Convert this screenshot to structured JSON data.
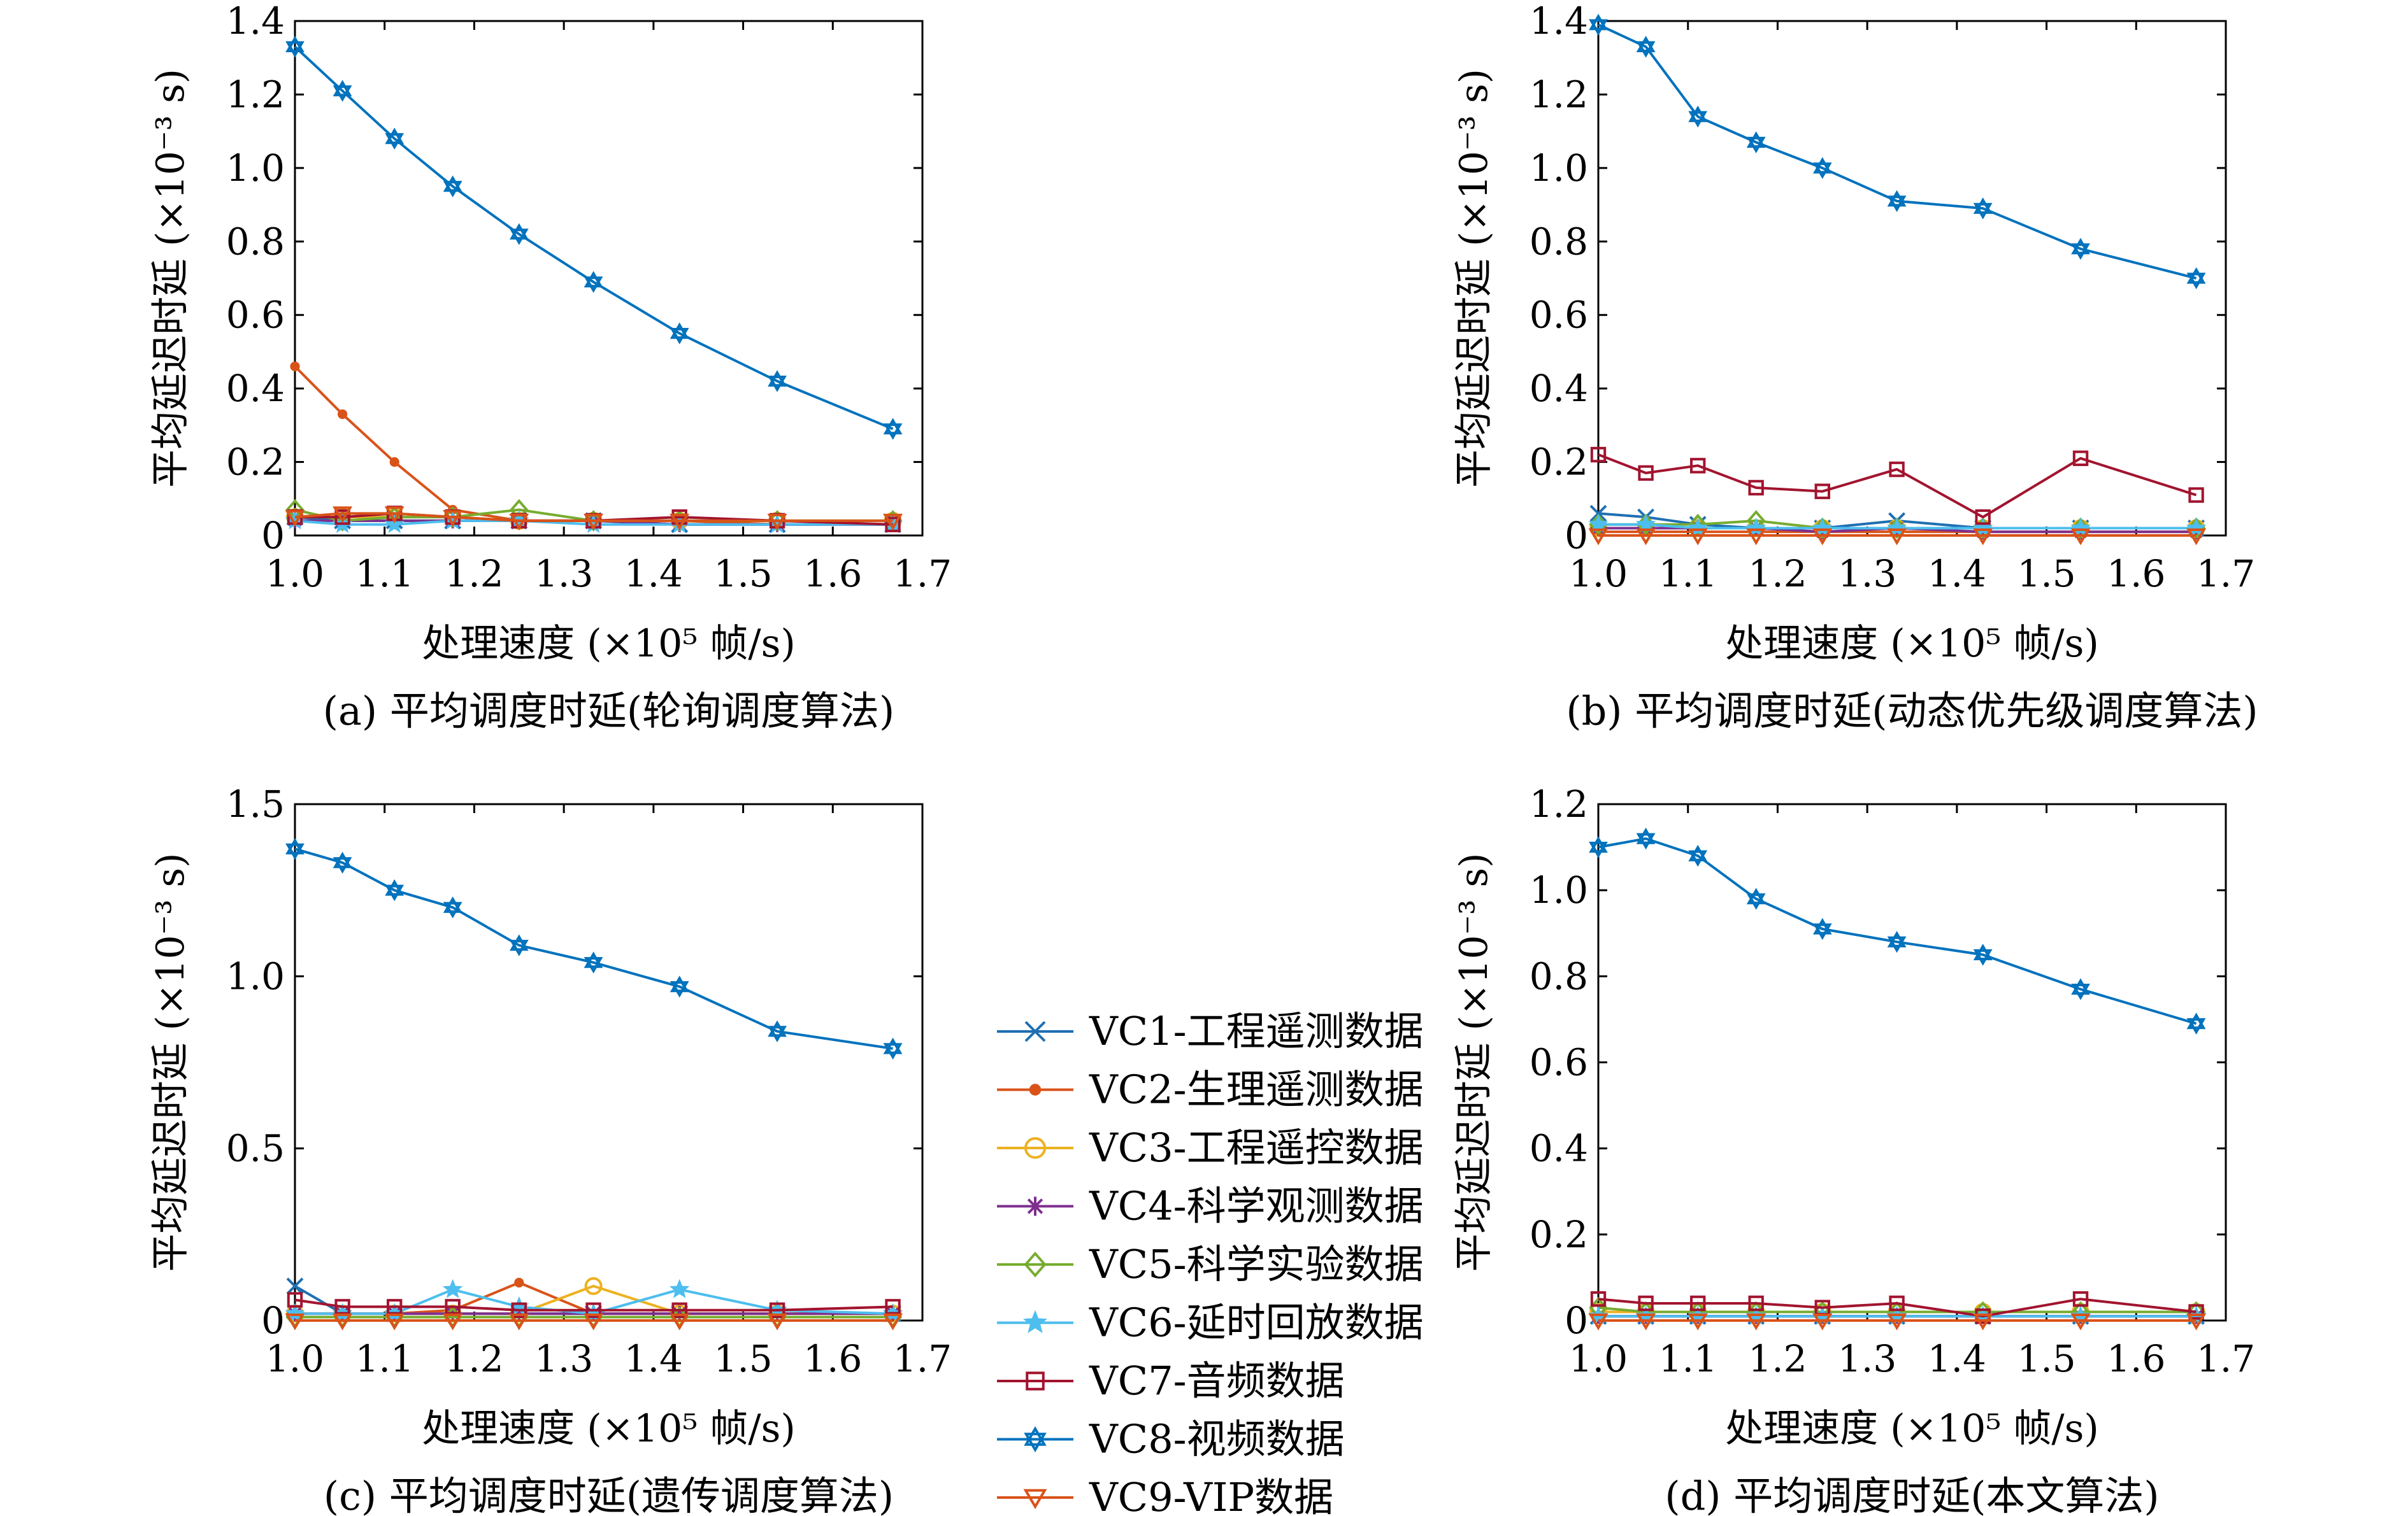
{
  "figure": {
    "legend": [
      {
        "key": "vc1",
        "label": "VC1-工程遥测数据",
        "color": "#1f6fb2",
        "marker": "x"
      },
      {
        "key": "vc2",
        "label": "VC2-生理遥测数据",
        "color": "#d95319",
        "marker": "dot"
      },
      {
        "key": "vc3",
        "label": "VC3-工程遥控数据",
        "color": "#edb120",
        "marker": "circle"
      },
      {
        "key": "vc4",
        "label": "VC4-科学观测数据",
        "color": "#7e2f8e",
        "marker": "asterisk"
      },
      {
        "key": "vc5",
        "label": "VC5-科学实验数据",
        "color": "#77ac30",
        "marker": "diamond"
      },
      {
        "key": "vc6",
        "label": "VC6-延时回放数据",
        "color": "#4dbeee",
        "marker": "star"
      },
      {
        "key": "vc7",
        "label": "VC7-音频数据",
        "color": "#a2142f",
        "marker": "square"
      },
      {
        "key": "vc8",
        "label": "VC8-视频数据",
        "color": "#0072bd",
        "marker": "hexagram"
      },
      {
        "key": "vc9",
        "label": "VC9-VIP数据",
        "color": "#d95319",
        "marker": "triangle-down"
      }
    ]
  },
  "chart_data": [
    {
      "type": "line",
      "caption": "(a) 平均调度时延(轮询调度算法)",
      "xlabel": "处理速度 (×10⁵ 帧/s)",
      "ylabel": "平均延迟时延 (×10⁻³ s)",
      "xlim": [
        1.0,
        1.7
      ],
      "ylim": [
        0,
        1.4
      ],
      "xticks": [
        "1.0",
        "1.1",
        "1.2",
        "1.3",
        "1.4",
        "1.5",
        "1.6",
        "1.7"
      ],
      "yticks": [
        "0",
        "0.2",
        "0.4",
        "0.6",
        "0.8",
        "1.0",
        "1.2",
        "1.4"
      ],
      "x": [
        1.0,
        1.053,
        1.111,
        1.176,
        1.25,
        1.333,
        1.429,
        1.538,
        1.667
      ],
      "series": [
        {
          "name": "VC1-工程遥测数据",
          "values": [
            0.05,
            0.04,
            0.04,
            0.04,
            0.04,
            0.04,
            0.03,
            0.03,
            0.03
          ]
        },
        {
          "name": "VC2-生理遥测数据",
          "values": [
            0.46,
            0.33,
            0.2,
            0.07,
            0.04,
            0.04,
            0.04,
            0.03,
            0.03
          ]
        },
        {
          "name": "VC3-工程遥控数据",
          "values": [
            0.05,
            0.05,
            0.05,
            0.05,
            0.04,
            0.04,
            0.04,
            0.04,
            0.04
          ]
        },
        {
          "name": "VC4-科学观测数据",
          "values": [
            0.04,
            0.04,
            0.04,
            0.04,
            0.04,
            0.04,
            0.03,
            0.03,
            0.03
          ]
        },
        {
          "name": "VC5-科学实验数据",
          "values": [
            0.07,
            0.04,
            0.05,
            0.05,
            0.07,
            0.04,
            0.04,
            0.04,
            0.04
          ]
        },
        {
          "name": "VC6-延时回放数据",
          "values": [
            0.04,
            0.03,
            0.03,
            0.04,
            0.04,
            0.03,
            0.03,
            0.03,
            0.03
          ]
        },
        {
          "name": "VC7-音频数据",
          "values": [
            0.05,
            0.05,
            0.06,
            0.05,
            0.04,
            0.04,
            0.05,
            0.04,
            0.03
          ]
        },
        {
          "name": "VC8-视频数据",
          "values": [
            1.33,
            1.21,
            1.08,
            0.95,
            0.82,
            0.69,
            0.55,
            0.42,
            0.29
          ]
        },
        {
          "name": "VC9-VIP数据",
          "values": [
            0.05,
            0.06,
            0.06,
            0.05,
            0.04,
            0.04,
            0.04,
            0.04,
            0.04
          ]
        }
      ]
    },
    {
      "type": "line",
      "caption": "(b) 平均调度时延(动态优先级调度算法)",
      "xlabel": "处理速度 (×10⁵ 帧/s)",
      "ylabel": "平均延迟时延 (×10⁻³ s)",
      "xlim": [
        1.0,
        1.7
      ],
      "ylim": [
        0,
        1.4
      ],
      "xticks": [
        "1.0",
        "1.1",
        "1.2",
        "1.3",
        "1.4",
        "1.5",
        "1.6",
        "1.7"
      ],
      "yticks": [
        "0",
        "0.2",
        "0.4",
        "0.6",
        "0.8",
        "1.0",
        "1.2",
        "1.4"
      ],
      "x": [
        1.0,
        1.053,
        1.111,
        1.176,
        1.25,
        1.333,
        1.429,
        1.538,
        1.667
      ],
      "series": [
        {
          "name": "VC1-工程遥测数据",
          "values": [
            0.06,
            0.05,
            0.03,
            0.02,
            0.02,
            0.04,
            0.02,
            0.02,
            0.02
          ]
        },
        {
          "name": "VC2-生理遥测数据",
          "values": [
            0.01,
            0.01,
            0.01,
            0.01,
            0.01,
            0.01,
            0.01,
            0.01,
            0.01
          ]
        },
        {
          "name": "VC3-工程遥控数据",
          "values": [
            0.02,
            0.02,
            0.02,
            0.02,
            0.02,
            0.02,
            0.02,
            0.02,
            0.02
          ]
        },
        {
          "name": "VC4-科学观测数据",
          "values": [
            0.02,
            0.02,
            0.02,
            0.02,
            0.01,
            0.02,
            0.01,
            0.01,
            0.01
          ]
        },
        {
          "name": "VC5-科学实验数据",
          "values": [
            0.03,
            0.03,
            0.03,
            0.04,
            0.02,
            0.02,
            0.02,
            0.02,
            0.02
          ]
        },
        {
          "name": "VC6-延时回放数据",
          "values": [
            0.03,
            0.03,
            0.02,
            0.02,
            0.02,
            0.02,
            0.02,
            0.02,
            0.02
          ]
        },
        {
          "name": "VC7-音频数据",
          "values": [
            0.22,
            0.17,
            0.19,
            0.13,
            0.12,
            0.18,
            0.05,
            0.21,
            0.11
          ]
        },
        {
          "name": "VC8-视频数据",
          "values": [
            1.39,
            1.33,
            1.14,
            1.07,
            1.0,
            0.91,
            0.89,
            0.78,
            0.7
          ]
        },
        {
          "name": "VC9-VIP数据",
          "values": [
            0.0,
            0.0,
            0.0,
            0.0,
            0.0,
            0.0,
            0.0,
            0.0,
            0.0
          ]
        }
      ]
    },
    {
      "type": "line",
      "caption": "(c) 平均调度时延(遗传调度算法)",
      "xlabel": "处理速度 (×10⁵ 帧/s)",
      "ylabel": "平均延迟时延 (×10⁻³ s)",
      "xlim": [
        1.0,
        1.7
      ],
      "ylim": [
        0,
        1.5
      ],
      "xticks": [
        "1.0",
        "1.1",
        "1.2",
        "1.3",
        "1.4",
        "1.5",
        "1.6",
        "1.7"
      ],
      "yticks": [
        "0",
        "0.5",
        "1.0",
        "1.5"
      ],
      "x": [
        1.0,
        1.053,
        1.111,
        1.176,
        1.25,
        1.333,
        1.429,
        1.538,
        1.667
      ],
      "series": [
        {
          "name": "VC1-工程遥测数据",
          "values": [
            0.1,
            0.02,
            0.02,
            0.02,
            0.02,
            0.02,
            0.02,
            0.02,
            0.02
          ]
        },
        {
          "name": "VC2-生理遥测数据",
          "values": [
            0.02,
            0.02,
            0.02,
            0.03,
            0.11,
            0.02,
            0.02,
            0.02,
            0.02
          ]
        },
        {
          "name": "VC3-工程遥控数据",
          "values": [
            0.02,
            0.02,
            0.02,
            0.02,
            0.02,
            0.1,
            0.02,
            0.02,
            0.02
          ]
        },
        {
          "name": "VC4-科学观测数据",
          "values": [
            0.02,
            0.02,
            0.02,
            0.02,
            0.02,
            0.02,
            0.02,
            0.02,
            0.02
          ]
        },
        {
          "name": "VC5-科学实验数据",
          "values": [
            0.01,
            0.01,
            0.01,
            0.01,
            0.01,
            0.01,
            0.01,
            0.01,
            0.01
          ]
        },
        {
          "name": "VC6-延时回放数据",
          "values": [
            0.02,
            0.02,
            0.02,
            0.09,
            0.04,
            0.02,
            0.09,
            0.03,
            0.02
          ]
        },
        {
          "name": "VC7-音频数据",
          "values": [
            0.06,
            0.04,
            0.04,
            0.04,
            0.03,
            0.03,
            0.03,
            0.03,
            0.04
          ]
        },
        {
          "name": "VC8-视频数据",
          "values": [
            1.37,
            1.33,
            1.25,
            1.2,
            1.09,
            1.04,
            0.97,
            0.84,
            0.79
          ]
        },
        {
          "name": "VC9-VIP数据",
          "values": [
            0.0,
            0.0,
            0.0,
            0.0,
            0.0,
            0.0,
            0.0,
            0.0,
            0.0
          ]
        }
      ]
    },
    {
      "type": "line",
      "caption": "(d) 平均调度时延(本文算法)",
      "xlabel": "处理速度 (×10⁵ 帧/s)",
      "ylabel": "平均延迟时延 (×10⁻³ s)",
      "xlim": [
        1.0,
        1.7
      ],
      "ylim": [
        0,
        1.2
      ],
      "xticks": [
        "1.0",
        "1.1",
        "1.2",
        "1.3",
        "1.4",
        "1.5",
        "1.6",
        "1.7"
      ],
      "yticks": [
        "0",
        "0.2",
        "0.4",
        "0.6",
        "0.8",
        "1.0",
        "1.2"
      ],
      "x": [
        1.0,
        1.053,
        1.111,
        1.176,
        1.25,
        1.333,
        1.429,
        1.538,
        1.667
      ],
      "series": [
        {
          "name": "VC1-工程遥测数据",
          "values": [
            0.01,
            0.01,
            0.01,
            0.01,
            0.01,
            0.01,
            0.01,
            0.01,
            0.01
          ]
        },
        {
          "name": "VC2-生理遥测数据",
          "values": [
            0.01,
            0.01,
            0.01,
            0.01,
            0.01,
            0.01,
            0.01,
            0.01,
            0.01
          ]
        },
        {
          "name": "VC3-工程遥控数据",
          "values": [
            0.02,
            0.02,
            0.02,
            0.02,
            0.02,
            0.02,
            0.02,
            0.02,
            0.02
          ]
        },
        {
          "name": "VC4-科学观测数据",
          "values": [
            0.01,
            0.01,
            0.01,
            0.01,
            0.01,
            0.01,
            0.01,
            0.01,
            0.01
          ]
        },
        {
          "name": "VC5-科学实验数据",
          "values": [
            0.03,
            0.02,
            0.02,
            0.02,
            0.02,
            0.02,
            0.02,
            0.02,
            0.02
          ]
        },
        {
          "name": "VC6-延时回放数据",
          "values": [
            0.01,
            0.01,
            0.01,
            0.01,
            0.01,
            0.01,
            0.01,
            0.01,
            0.01
          ]
        },
        {
          "name": "VC7-音频数据",
          "values": [
            0.05,
            0.04,
            0.04,
            0.04,
            0.03,
            0.04,
            0.01,
            0.05,
            0.02
          ]
        },
        {
          "name": "VC8-视频数据",
          "values": [
            1.1,
            1.12,
            1.08,
            0.98,
            0.91,
            0.88,
            0.85,
            0.77,
            0.69
          ]
        },
        {
          "name": "VC9-VIP数据",
          "values": [
            0.0,
            0.0,
            0.0,
            0.0,
            0.0,
            0.0,
            0.0,
            0.0,
            0.0
          ]
        }
      ]
    }
  ]
}
